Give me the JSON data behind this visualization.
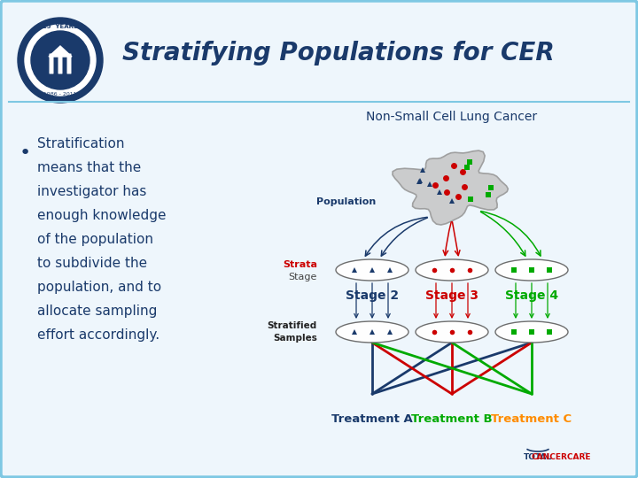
{
  "title": "Stratifying Populations for CER",
  "subtitle": "Non-Small Cell Lung Cancer",
  "stage_labels": [
    "Stage 2",
    "Stage 3",
    "Stage 4"
  ],
  "stage_colors": [
    "#1a3a6b",
    "#cc0000",
    "#00aa00"
  ],
  "treatment_labels": [
    "Treatment A",
    "Treatment B",
    "Treatment C"
  ],
  "treatment_colors": [
    "#1a3a6b",
    "#00aa00",
    "#ff8c00"
  ],
  "population_label": "Population",
  "strata_label_top": "Strata",
  "strata_label_bot": "Stage",
  "strata_color_top": "#cc0000",
  "strata_color_bot": "#444444",
  "stratified_label_top": "Stratified",
  "stratified_label_bot": "Samples",
  "bg_color": "#eef6fc",
  "border_color": "#7ec8e3",
  "title_color": "#1a3a6b",
  "bullet_color": "#1a3a6b",
  "bullet_lines": [
    "Stratification",
    "means that the",
    "investigator has",
    "enough knowledge",
    "of the population",
    "to subdivide the",
    "population, and to",
    "allocate sampling",
    "effort accordingly."
  ],
  "c_blue": "#1a3a6b",
  "c_red": "#cc0000",
  "c_green": "#00aa00",
  "c_orange": "#ff8c00"
}
